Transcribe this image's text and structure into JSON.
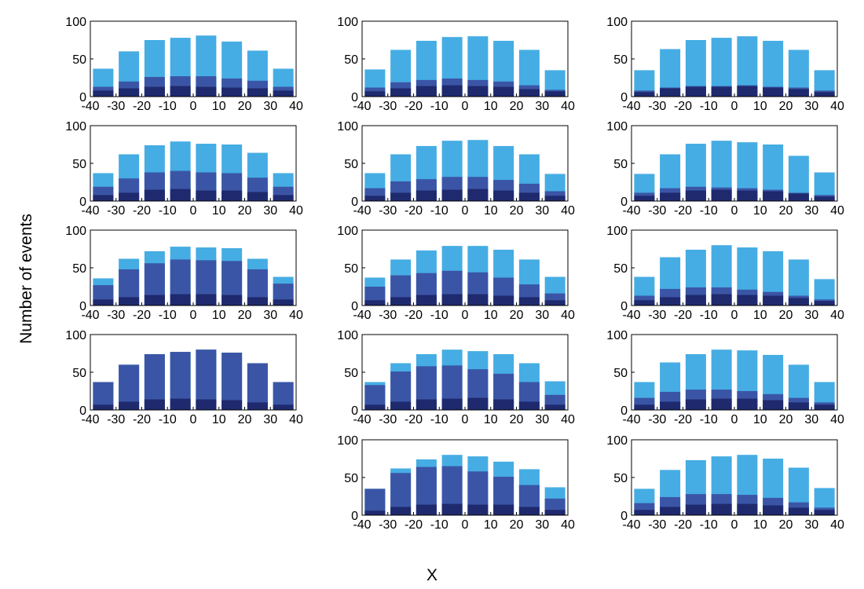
{
  "figure": {
    "ylabel": "Number of events",
    "xlabel": "X"
  },
  "chart_data": {
    "type": "bar",
    "stacked": "overlaid",
    "layout": "small-multiples",
    "colors": {
      "light": "#45ADE3",
      "mid": "#3B55A6",
      "dark": "#1F2A6E"
    },
    "x": [
      -35,
      -25,
      -15,
      -5,
      5,
      15,
      25,
      35
    ],
    "xlim": [
      -40,
      40
    ],
    "xticks": [
      -40,
      -30,
      -20,
      -10,
      0,
      10,
      20,
      30,
      40
    ],
    "ylim": [
      0,
      100
    ],
    "yticks": [
      0,
      50,
      100
    ],
    "panels": [
      {
        "id": "r1c1",
        "row": 1,
        "col": 1,
        "light": [
          37,
          60,
          75,
          78,
          81,
          73,
          61,
          37
        ],
        "mid": [
          13,
          20,
          26,
          27,
          27,
          24,
          21,
          13
        ],
        "dark": [
          8,
          11,
          13,
          14,
          13,
          12,
          11,
          8
        ]
      },
      {
        "id": "r1c2",
        "row": 1,
        "col": 2,
        "light": [
          36,
          62,
          74,
          79,
          80,
          74,
          62,
          35
        ],
        "mid": [
          12,
          19,
          22,
          24,
          22,
          20,
          15,
          9
        ],
        "dark": [
          7,
          11,
          14,
          15,
          14,
          13,
          10,
          7
        ]
      },
      {
        "id": "r1c3",
        "row": 1,
        "col": 3,
        "light": [
          35,
          63,
          75,
          78,
          80,
          74,
          62,
          35
        ],
        "mid": [
          8,
          12,
          14,
          14,
          15,
          13,
          12,
          8
        ],
        "dark": [
          6,
          11,
          13,
          13,
          14,
          12,
          10,
          6
        ]
      },
      {
        "id": "r2c1",
        "row": 2,
        "col": 1,
        "light": [
          37,
          62,
          74,
          79,
          76,
          75,
          64,
          37
        ],
        "mid": [
          19,
          30,
          38,
          40,
          38,
          37,
          31,
          19
        ],
        "dark": [
          8,
          11,
          15,
          16,
          14,
          14,
          12,
          8
        ]
      },
      {
        "id": "r2c2",
        "row": 2,
        "col": 2,
        "light": [
          37,
          62,
          73,
          80,
          81,
          73,
          62,
          36
        ],
        "mid": [
          17,
          26,
          29,
          32,
          32,
          28,
          23,
          13
        ],
        "dark": [
          7,
          11,
          14,
          15,
          16,
          14,
          11,
          7
        ]
      },
      {
        "id": "r2c3",
        "row": 2,
        "col": 3,
        "light": [
          36,
          62,
          76,
          80,
          78,
          75,
          60,
          38
        ],
        "mid": [
          11,
          17,
          19,
          18,
          17,
          15,
          11,
          8
        ],
        "dark": [
          7,
          11,
          14,
          15,
          14,
          13,
          10,
          6
        ]
      },
      {
        "id": "r3c1",
        "row": 3,
        "col": 1,
        "light": [
          36,
          62,
          72,
          78,
          77,
          76,
          62,
          38
        ],
        "mid": [
          27,
          48,
          56,
          61,
          60,
          59,
          48,
          29
        ],
        "dark": [
          8,
          11,
          14,
          15,
          15,
          14,
          11,
          8
        ]
      },
      {
        "id": "r3c2",
        "row": 3,
        "col": 2,
        "light": [
          37,
          61,
          73,
          79,
          79,
          74,
          61,
          38
        ],
        "mid": [
          25,
          40,
          43,
          46,
          44,
          37,
          28,
          16
        ],
        "dark": [
          7,
          11,
          14,
          15,
          15,
          13,
          11,
          7
        ]
      },
      {
        "id": "r3c3",
        "row": 3,
        "col": 3,
        "light": [
          38,
          64,
          74,
          80,
          77,
          72,
          61,
          35
        ],
        "mid": [
          13,
          22,
          24,
          24,
          21,
          18,
          13,
          8
        ],
        "dark": [
          7,
          11,
          14,
          15,
          14,
          13,
          10,
          6
        ]
      },
      {
        "id": "r4c1",
        "row": 4,
        "col": 1,
        "light": [
          37,
          60,
          74,
          77,
          80,
          76,
          62,
          37
        ],
        "mid": [
          37,
          60,
          74,
          77,
          80,
          76,
          62,
          37
        ],
        "dark": [
          7,
          11,
          14,
          15,
          14,
          13,
          10,
          7
        ]
      },
      {
        "id": "r4c2",
        "row": 4,
        "col": 2,
        "light": [
          37,
          62,
          74,
          80,
          78,
          74,
          62,
          38
        ],
        "mid": [
          33,
          51,
          58,
          59,
          54,
          48,
          37,
          20
        ],
        "dark": [
          7,
          11,
          14,
          15,
          16,
          14,
          11,
          7
        ]
      },
      {
        "id": "r4c3",
        "row": 4,
        "col": 3,
        "light": [
          37,
          63,
          74,
          80,
          79,
          73,
          60,
          37
        ],
        "mid": [
          16,
          24,
          27,
          27,
          25,
          21,
          16,
          10
        ],
        "dark": [
          7,
          11,
          14,
          15,
          15,
          13,
          10,
          7
        ]
      },
      {
        "id": "r5c2",
        "row": 5,
        "col": 2,
        "light": [
          35,
          62,
          74,
          80,
          78,
          71,
          61,
          37
        ],
        "mid": [
          35,
          56,
          64,
          65,
          58,
          51,
          40,
          22
        ],
        "dark": [
          6,
          11,
          14,
          15,
          14,
          14,
          11,
          7
        ]
      },
      {
        "id": "r5c3",
        "row": 5,
        "col": 3,
        "light": [
          35,
          60,
          73,
          78,
          80,
          75,
          63,
          36
        ],
        "mid": [
          16,
          24,
          28,
          28,
          27,
          23,
          17,
          10
        ],
        "dark": [
          7,
          11,
          14,
          15,
          15,
          13,
          10,
          7
        ]
      }
    ]
  }
}
